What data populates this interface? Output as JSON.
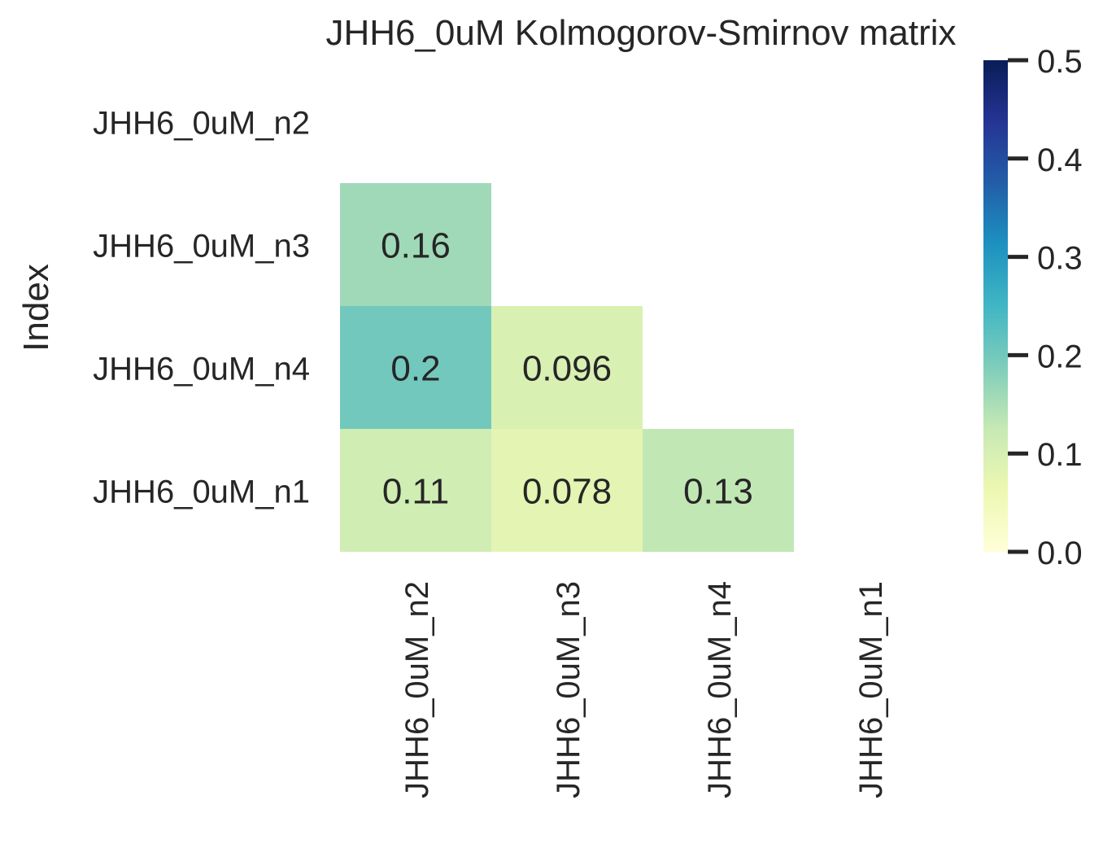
{
  "chart_data": {
    "type": "heatmap",
    "title": "JHH6_0uM Kolmogorov-Smirnov matrix",
    "ylabel": "Index",
    "xlabel": "",
    "row_labels": [
      "JHH6_0uM_n2",
      "JHH6_0uM_n3",
      "JHH6_0uM_n4",
      "JHH6_0uM_n1"
    ],
    "col_labels": [
      "JHH6_0uM_n2",
      "JHH6_0uM_n3",
      "JHH6_0uM_n4",
      "JHH6_0uM_n1"
    ],
    "mask": "upper-triangle-including-diagonal",
    "cells": [
      {
        "row": 1,
        "col": 0,
        "value": 0.16,
        "label": "0.16"
      },
      {
        "row": 2,
        "col": 0,
        "value": 0.2,
        "label": "0.2"
      },
      {
        "row": 2,
        "col": 1,
        "value": 0.096,
        "label": "0.096"
      },
      {
        "row": 3,
        "col": 0,
        "value": 0.11,
        "label": "0.11"
      },
      {
        "row": 3,
        "col": 1,
        "value": 0.078,
        "label": "0.078"
      },
      {
        "row": 3,
        "col": 2,
        "value": 0.13,
        "label": "0.13"
      }
    ],
    "colorbar": {
      "colormap": "YlGnBu",
      "vmin": 0.0,
      "vmax": 0.5,
      "ticks": [
        0.0,
        0.1,
        0.2,
        0.3,
        0.4,
        0.5
      ],
      "tick_labels": [
        "0.0",
        "0.1",
        "0.2",
        "0.3",
        "0.4",
        "0.5"
      ]
    },
    "colors": [
      "#ffffd9",
      "#edf8b1",
      "#c7e9b4",
      "#7fcdbb",
      "#41b6c4",
      "#1d91c0",
      "#225ea8",
      "#253494",
      "#081d58"
    ]
  }
}
